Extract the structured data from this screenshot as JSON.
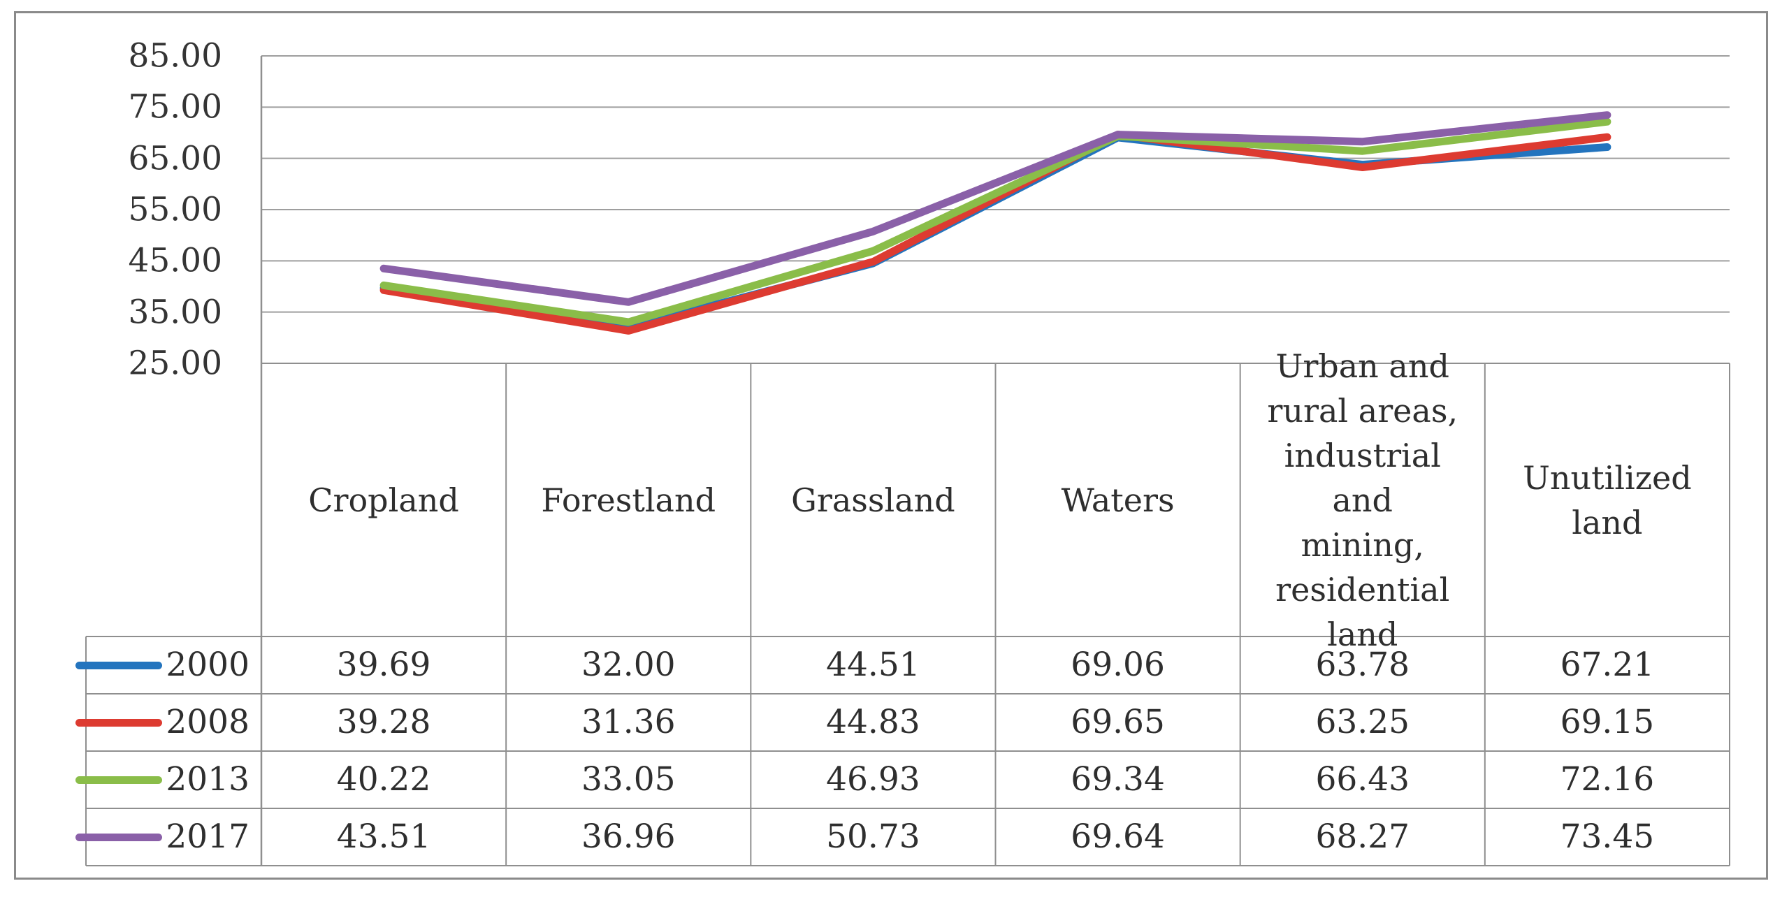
{
  "figure": {
    "background": "#FFFFFF",
    "border_color": "#8A8A8A",
    "gridline_color": "#9E9E9E",
    "table_line_color": "#8F8F8F",
    "text_color": "#2E2E2E"
  },
  "chart_data": {
    "type": "line",
    "title": "",
    "categories": [
      "Cropland",
      "Forestland",
      "Grassland",
      "Waters",
      "Urban and rural areas, industrial and mining, residential land",
      "Unutilized land"
    ],
    "categories_display": [
      "Cropland",
      "Forestland",
      "Grassland",
      "Waters",
      "Urban and\nrural areas,\nindustrial and\nmining,\nresidential\nland",
      "Unutilized\nland"
    ],
    "y_axis": {
      "min": 25,
      "max": 85,
      "step": 10,
      "tick_labels": [
        "85.00",
        "75.00",
        "65.00",
        "55.00",
        "45.00",
        "35.00",
        "25.00"
      ]
    },
    "grid": true,
    "legend_position": "table-left",
    "series": [
      {
        "name": "2000",
        "color": "#2374BE",
        "values": [
          "39.69",
          "32.00",
          "44.51",
          "69.06",
          "63.78",
          "67.21"
        ]
      },
      {
        "name": "2008",
        "color": "#DD3B31",
        "values": [
          "39.28",
          "31.36",
          "44.83",
          "69.65",
          "63.25",
          "69.15"
        ]
      },
      {
        "name": "2013",
        "color": "#8ABD49",
        "values": [
          "40.22",
          "33.05",
          "46.93",
          "69.34",
          "66.43",
          "72.16"
        ]
      },
      {
        "name": "2017",
        "color": "#8A60A8",
        "values": [
          "43.51",
          "36.96",
          "50.73",
          "69.64",
          "68.27",
          "73.45"
        ]
      }
    ]
  }
}
